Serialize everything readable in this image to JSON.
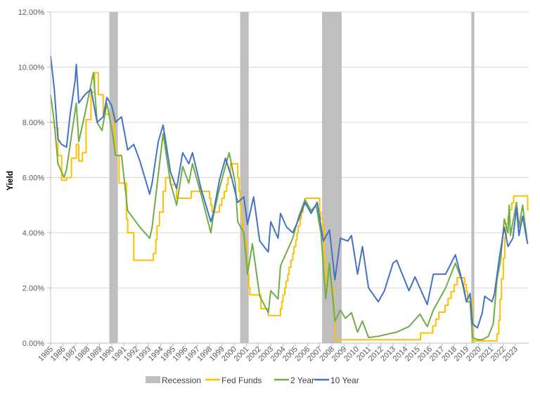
{
  "chart_data": {
    "type": "line",
    "title": "",
    "xlabel": "",
    "ylabel": "Yield",
    "ylim": [
      0,
      12
    ],
    "xlim": [
      1985.7,
      2024.8
    ],
    "y_ticks": [
      "0.00%",
      "2.00%",
      "4.00%",
      "6.00%",
      "8.00%",
      "10.00%",
      "12.00%"
    ],
    "x_tick_labels": [
      "1985",
      "1986",
      "1987",
      "1988",
      "1989",
      "1990",
      "1991",
      "1992",
      "1993",
      "1994",
      "1995",
      "1996",
      "1997",
      "1998",
      "1999",
      "2000",
      "2001",
      "2002",
      "2003",
      "2004",
      "2005",
      "2006",
      "2007",
      "2008",
      "2009",
      "2010",
      "2011",
      "2012",
      "2013",
      "2014",
      "2015",
      "2016",
      "2017",
      "2018",
      "2019",
      "2020",
      "2021",
      "2022",
      "2023"
    ],
    "grid": "horizontal",
    "legend": "bottom",
    "recessions": [
      [
        1990.5,
        1991.2
      ],
      [
        2001.2,
        2001.9
      ],
      [
        2007.9,
        2009.5
      ],
      [
        2020.1,
        2020.35
      ]
    ],
    "series": [
      {
        "name": "Recession",
        "color": "#BFBFBF",
        "kind": "band"
      },
      {
        "name": "Fed Funds",
        "color": "#FFC000",
        "kind": "step",
        "x": [
          1985.7,
          1986.0,
          1986.3,
          1986.6,
          1987.0,
          1987.4,
          1987.8,
          1988.0,
          1988.3,
          1988.6,
          1989.0,
          1989.3,
          1989.6,
          1990.0,
          1990.9,
          1991.0,
          1991.3,
          1991.9,
          1992.0,
          1992.5,
          1994.1,
          1994.3,
          1994.4,
          1994.6,
          1994.9,
          1995.1,
          1995.5,
          1996.0,
          1997.2,
          1998.7,
          1998.8,
          1998.9,
          1999.5,
          1999.7,
          1999.9,
          2000.1,
          2000.2,
          2000.4,
          2001.0,
          2001.1,
          2001.2,
          2001.3,
          2001.4,
          2001.5,
          2001.7,
          2001.8,
          2001.9,
          2002.0,
          2002.9,
          2003.5,
          2004.5,
          2004.6,
          2004.7,
          2004.85,
          2004.95,
          2005.1,
          2005.2,
          2005.35,
          2005.5,
          2005.6,
          2005.75,
          2005.85,
          2005.95,
          2006.1,
          2006.2,
          2006.35,
          2006.5,
          2007.7,
          2007.8,
          2007.95,
          2008.05,
          2008.2,
          2008.3,
          2008.8,
          2008.85,
          2008.95,
          2015.95,
          2016.95,
          2017.2,
          2017.45,
          2017.95,
          2018.2,
          2018.45,
          2018.7,
          2018.95,
          2019.55,
          2019.7,
          2019.8,
          2020.17,
          2020.2,
          2022.2,
          2022.35,
          2022.45,
          2022.57,
          2022.72,
          2022.84,
          2022.96,
          2023.1,
          2023.23,
          2023.4,
          2023.57,
          2024.71,
          2024.8
        ],
        "y": [
          8.0,
          7.8,
          6.8,
          5.9,
          6.0,
          6.7,
          7.2,
          6.6,
          6.9,
          8.1,
          9.1,
          9.8,
          9.0,
          8.3,
          7.3,
          6.8,
          5.8,
          4.5,
          4.0,
          3.0,
          3.25,
          3.75,
          4.25,
          4.75,
          5.5,
          6.0,
          5.75,
          5.25,
          5.5,
          5.25,
          5.0,
          4.75,
          5.0,
          5.25,
          5.5,
          5.75,
          6.0,
          6.5,
          6.0,
          5.5,
          5.0,
          4.5,
          4.0,
          3.75,
          3.0,
          2.5,
          2.0,
          1.75,
          1.25,
          1.0,
          1.25,
          1.5,
          1.75,
          2.0,
          2.25,
          2.5,
          2.75,
          3.0,
          3.25,
          3.5,
          3.75,
          4.0,
          4.25,
          4.5,
          4.75,
          5.0,
          5.25,
          4.75,
          4.5,
          4.25,
          3.0,
          2.25,
          2.0,
          1.5,
          1.0,
          0.12,
          0.37,
          0.62,
          0.87,
          1.12,
          1.37,
          1.62,
          1.87,
          2.12,
          2.37,
          2.12,
          1.87,
          1.62,
          1.1,
          0.08,
          0.33,
          0.83,
          1.58,
          2.33,
          3.08,
          3.83,
          4.33,
          4.58,
          4.83,
          5.08,
          5.33,
          4.83,
          4.83
        ]
      },
      {
        "name": "2 Year",
        "color": "#70AD47",
        "kind": "line",
        "x": [
          1985.7,
          1986.0,
          1986.3,
          1986.8,
          1987.0,
          1987.4,
          1987.8,
          1988.0,
          1988.5,
          1989.2,
          1989.5,
          1989.9,
          1990.3,
          1990.8,
          1991.0,
          1991.5,
          1992.0,
          1992.5,
          1993.0,
          1993.8,
          1994.0,
          1994.9,
          1995.5,
          1996.0,
          1996.5,
          1997.0,
          1997.3,
          1998.0,
          1998.8,
          1999.0,
          1999.5,
          2000.3,
          2000.8,
          2001.0,
          2001.5,
          2001.8,
          2002.2,
          2002.8,
          2003.5,
          2003.7,
          2004.3,
          2004.5,
          2005.0,
          2005.5,
          2006.0,
          2006.5,
          2007.0,
          2007.4,
          2007.8,
          2008.2,
          2008.5,
          2008.95,
          2009.4,
          2009.8,
          2010.3,
          2010.8,
          2011.2,
          2011.7,
          2012.5,
          2013.5,
          2014.0,
          2015.0,
          2015.9,
          2016.5,
          2017.0,
          2018.0,
          2018.8,
          2019.3,
          2019.7,
          2020.0,
          2020.2,
          2020.6,
          2021.0,
          2021.5,
          2021.9,
          2022.2,
          2022.5,
          2022.8,
          2023.1,
          2023.2,
          2023.3,
          2023.8,
          2024.0,
          2024.3,
          2024.7
        ],
        "y": [
          9.0,
          8.0,
          6.5,
          6.0,
          6.3,
          7.5,
          8.7,
          7.3,
          8.3,
          9.8,
          8.0,
          7.7,
          8.7,
          7.5,
          6.8,
          6.8,
          4.8,
          4.5,
          4.2,
          3.8,
          4.2,
          7.6,
          5.8,
          5.0,
          6.4,
          5.8,
          6.5,
          5.4,
          4.0,
          4.6,
          5.6,
          6.9,
          5.8,
          4.4,
          4.0,
          2.5,
          3.6,
          1.7,
          1.1,
          1.9,
          1.6,
          2.8,
          3.3,
          3.8,
          4.6,
          5.2,
          4.8,
          5.0,
          4.0,
          1.6,
          2.9,
          0.8,
          1.2,
          0.9,
          1.1,
          0.4,
          0.8,
          0.2,
          0.25,
          0.35,
          0.4,
          0.6,
          1.05,
          0.6,
          1.2,
          2.0,
          2.9,
          2.3,
          1.5,
          1.5,
          0.2,
          0.13,
          0.12,
          0.25,
          0.7,
          2.3,
          3.0,
          4.5,
          4.0,
          5.0,
          3.9,
          5.1,
          4.2,
          5.0,
          3.6
        ]
      },
      {
        "name": "10 Year",
        "color": "#4472C4",
        "kind": "line",
        "x": [
          1985.7,
          1986.0,
          1986.3,
          1986.6,
          1987.0,
          1987.3,
          1987.7,
          1987.8,
          1988.0,
          1988.5,
          1989.0,
          1989.5,
          1990.0,
          1990.3,
          1990.7,
          1991.0,
          1991.5,
          1992.0,
          1992.5,
          1993.0,
          1993.8,
          1994.0,
          1994.5,
          1994.9,
          1995.5,
          1996.0,
          1996.5,
          1997.0,
          1997.3,
          1998.0,
          1998.8,
          1999.0,
          1999.5,
          2000.0,
          2000.5,
          2001.0,
          2001.5,
          2001.8,
          2002.3,
          2002.8,
          2003.5,
          2003.7,
          2004.3,
          2004.5,
          2005.0,
          2005.5,
          2006.0,
          2006.5,
          2007.0,
          2007.5,
          2008.0,
          2008.5,
          2008.95,
          2009.4,
          2010.0,
          2010.3,
          2010.8,
          2011.2,
          2011.7,
          2012.5,
          2013.0,
          2013.7,
          2014.0,
          2015.0,
          2015.5,
          2016.5,
          2017.0,
          2018.0,
          2018.8,
          2019.5,
          2019.7,
          2020.0,
          2020.2,
          2020.6,
          2021.0,
          2021.2,
          2021.8,
          2022.0,
          2022.4,
          2022.8,
          2023.1,
          2023.5,
          2023.8,
          2024.0,
          2024.3,
          2024.7
        ],
        "y": [
          10.4,
          9.2,
          7.4,
          7.2,
          7.1,
          8.3,
          9.5,
          10.1,
          8.7,
          9.0,
          9.2,
          8.0,
          8.2,
          8.9,
          8.6,
          8.0,
          8.2,
          7.0,
          7.2,
          6.6,
          5.4,
          5.8,
          7.3,
          7.9,
          6.2,
          5.6,
          6.9,
          6.5,
          6.9,
          5.6,
          4.4,
          4.7,
          5.9,
          6.7,
          6.0,
          5.1,
          5.3,
          4.3,
          5.3,
          3.7,
          3.3,
          4.4,
          3.8,
          4.7,
          4.2,
          4.0,
          4.5,
          5.1,
          4.7,
          5.1,
          3.7,
          4.1,
          2.3,
          3.8,
          3.7,
          3.9,
          2.5,
          3.5,
          2.0,
          1.5,
          1.9,
          2.9,
          3.0,
          1.9,
          2.4,
          1.4,
          2.5,
          2.5,
          3.2,
          2.0,
          1.5,
          1.8,
          0.7,
          0.55,
          1.1,
          1.7,
          1.5,
          1.8,
          3.1,
          4.2,
          3.5,
          3.8,
          4.9,
          3.9,
          4.6,
          3.6
        ]
      }
    ]
  }
}
